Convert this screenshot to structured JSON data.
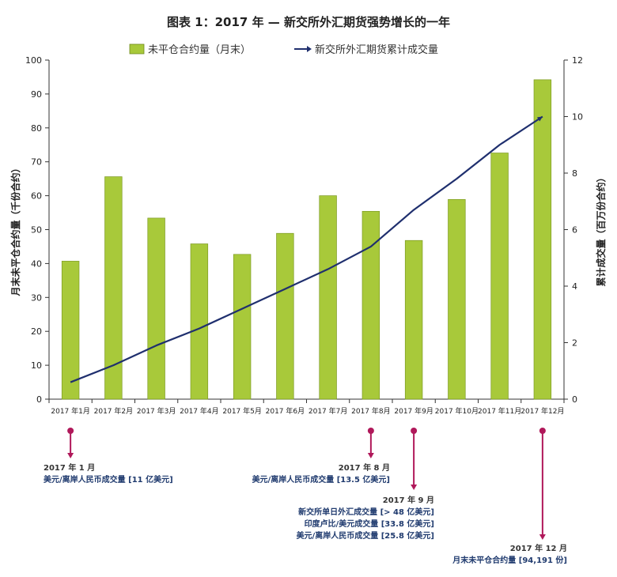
{
  "chart_data": {
    "type": "bar+line",
    "title": "图表 1：2017 年 — 新交所外汇期货强势增长的一年",
    "categories": [
      "2017 年1月",
      "2017 年2月",
      "2017 年3月",
      "2017 年4月",
      "2017 年5月",
      "2017 年6月",
      "2017 年7月",
      "2017 年8月",
      "2017 年9月",
      "2017 年10月",
      "2017 年11月",
      "2017 年12月"
    ],
    "series": [
      {
        "name": "未平仓合约量（月末）",
        "type": "bar",
        "axis": "left",
        "color": "#a8c93a",
        "values": [
          40.7,
          65.6,
          53.4,
          45.8,
          42.7,
          48.9,
          60.0,
          55.4,
          46.8,
          58.9,
          72.6,
          94.2
        ]
      },
      {
        "name": "新交所外汇期货累计成交量",
        "type": "line",
        "axis": "right",
        "color": "#1f2f6e",
        "values": [
          0.6,
          1.2,
          1.9,
          2.5,
          3.2,
          3.9,
          4.6,
          5.4,
          6.7,
          7.8,
          9.0,
          10.0
        ]
      }
    ],
    "ylabel": "月末未平仓合约量（千份合约）",
    "y2label": "累计成交量（百万份合约）",
    "ylim": [
      0,
      100
    ],
    "y2lim": [
      0,
      12
    ],
    "yticks": [
      0,
      10,
      20,
      30,
      40,
      50,
      60,
      70,
      80,
      90,
      100
    ],
    "y2ticks": [
      0,
      2,
      4,
      6,
      8,
      10,
      12
    ],
    "legend_position": "top",
    "grid": false
  },
  "annotations": [
    {
      "category_index": 0,
      "date": "2017 年 1 月",
      "lines": [
        "美元/离岸人民币成交量 [11 亿美元]"
      ]
    },
    {
      "category_index": 7,
      "date": "2017 年 8 月",
      "lines": [
        "美元/离岸人民币成交量 [13.5 亿美元]"
      ]
    },
    {
      "category_index": 8,
      "date": "2017 年 9 月",
      "lines": [
        "新交所单日外汇成交量 [> 48 亿美元]",
        "印度卢比/美元成交量 [33.8 亿美元]",
        "美元/离岸人民币成交量 [25.8 亿美元]"
      ]
    },
    {
      "category_index": 11,
      "date": "2017 年 12 月",
      "lines": [
        "月末未平仓合约量 [94,191 份]"
      ]
    }
  ],
  "colors": {
    "marker": "#b0185a",
    "axis": "#333333"
  }
}
